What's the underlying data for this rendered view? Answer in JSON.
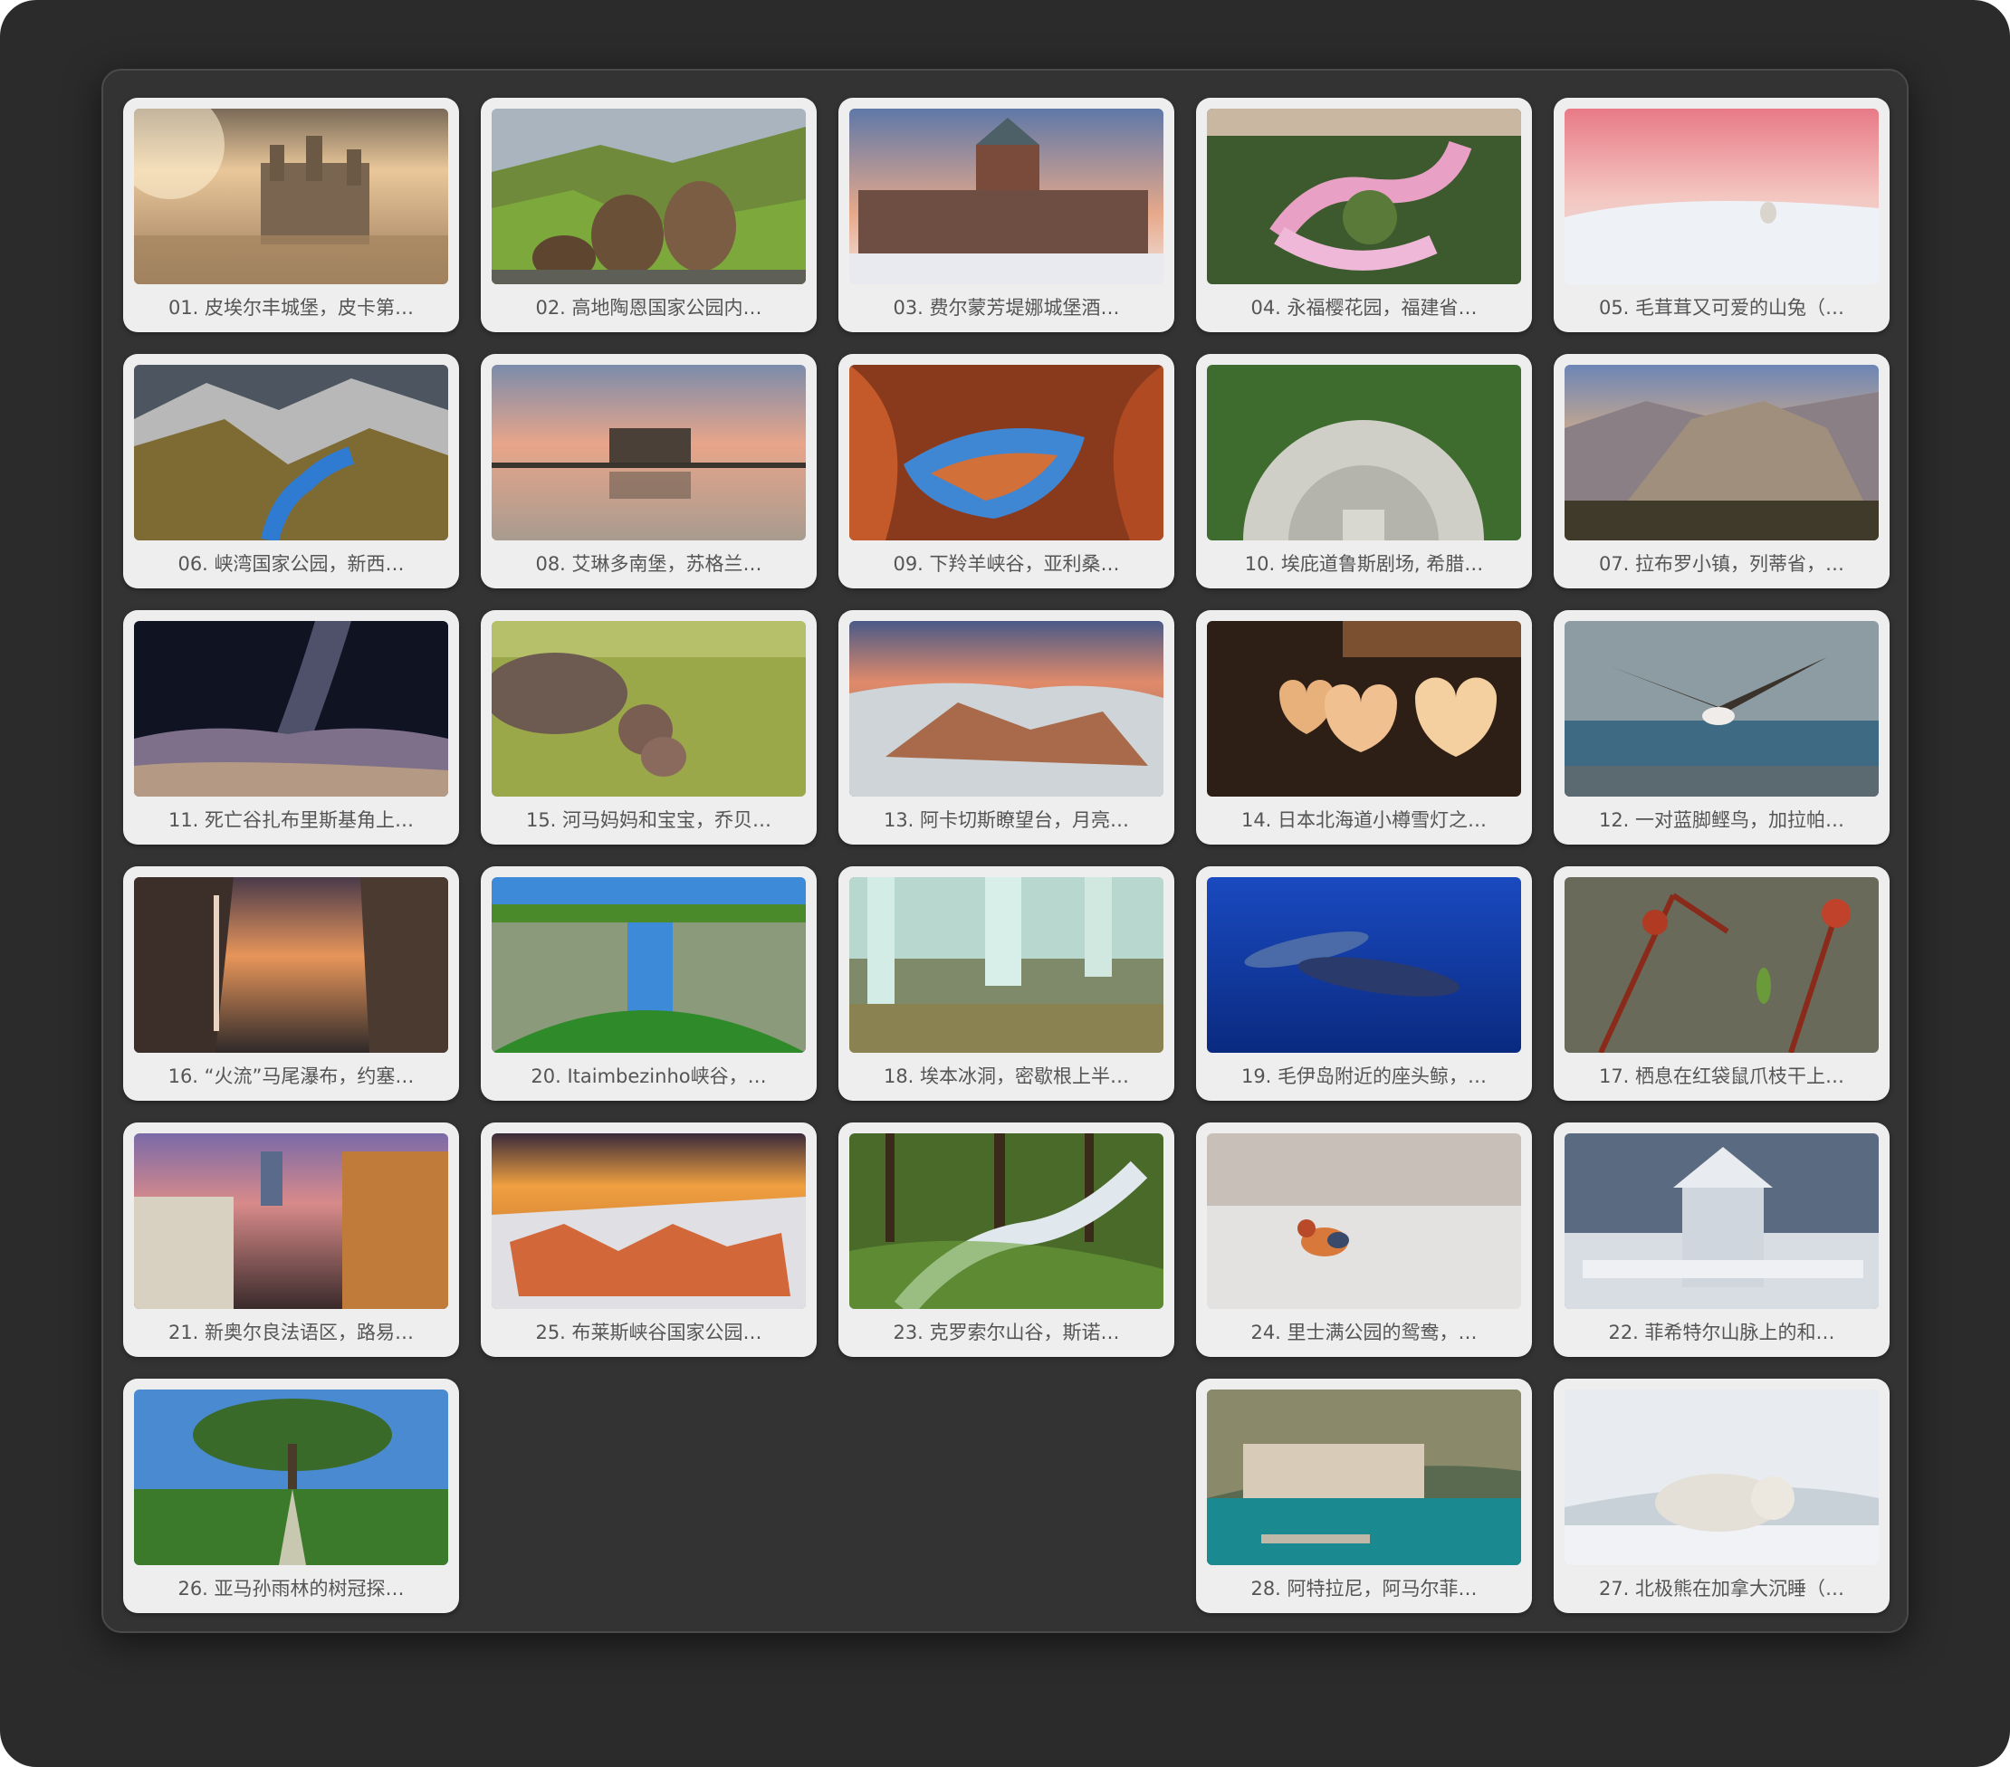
{
  "gallery": {
    "items": [
      {
        "caption": "01. 皮埃尔丰城堡，皮卡第…",
        "scene": "castle-fog"
      },
      {
        "caption": "02. 高地陶恩国家公园内…",
        "scene": "marmots"
      },
      {
        "caption": "03. 费尔蒙芳堤娜城堡酒…",
        "scene": "winter-city"
      },
      {
        "caption": "04. 永福樱花园，福建省…",
        "scene": "cherry-garden"
      },
      {
        "caption": "05. 毛茸茸又可爱的山兔（…",
        "scene": "pink-snow"
      },
      {
        "caption": "06. 峡湾国家公园，新西…",
        "scene": "fjord"
      },
      {
        "caption": "08. 艾琳多南堡，苏格兰…",
        "scene": "lake-castle"
      },
      {
        "caption": "09. 下羚羊峡谷，亚利桑…",
        "scene": "canyon-red"
      },
      {
        "caption": "10. 埃庇道鲁斯剧场, 希腊…",
        "scene": "theatre"
      },
      {
        "caption": "07. 拉布罗小镇，列蒂省，…",
        "scene": "hill-town"
      },
      {
        "caption": "11. 死亡谷扎布里斯基角上…",
        "scene": "night-sky"
      },
      {
        "caption": "15. 河马妈妈和宝宝，乔贝…",
        "scene": "savanna"
      },
      {
        "caption": "13. 阿卡切斯瞭望台，月亮…",
        "scene": "sea-rocks"
      },
      {
        "caption": "14. 日本北海道小樽雪灯之…",
        "scene": "lanterns"
      },
      {
        "caption": "12. 一对蓝脚鲣鸟，加拉帕…",
        "scene": "seabird"
      },
      {
        "caption": "16. “火流”马尾瀑布，约塞…",
        "scene": "firefall"
      },
      {
        "caption": "20. Itaimbezinho峡谷，…",
        "scene": "green-canyon"
      },
      {
        "caption": "18. 埃本冰洞，密歇根上半…",
        "scene": "ice-cave"
      },
      {
        "caption": "19. 毛伊岛附近的座头鲸，…",
        "scene": "whales"
      },
      {
        "caption": "17. 栖息在红袋鼠爪枝干上…",
        "scene": "hummingbird"
      },
      {
        "caption": "21. 新奥尔良法语区，路易…",
        "scene": "night-street"
      },
      {
        "caption": "25. 布莱斯峡谷国家公园…",
        "scene": "bryce"
      },
      {
        "caption": "23. 克罗索尔山谷，斯诺…",
        "scene": "forest-stream"
      },
      {
        "caption": "24. 里士满公园的鸳鸯，…",
        "scene": "snow-duck"
      },
      {
        "caption": "22. 菲希特尔山脉上的和…",
        "scene": "frozen-tower"
      },
      {
        "caption": "26. 亚马孙雨林的树冠探…",
        "scene": "rainforest"
      },
      {
        "caption": "28. 阿特拉尼，阿马尔菲…",
        "scene": "coast-town"
      },
      {
        "caption": "27. 北极熊在加拿大沉睡（…",
        "scene": "polar-bear"
      }
    ]
  }
}
